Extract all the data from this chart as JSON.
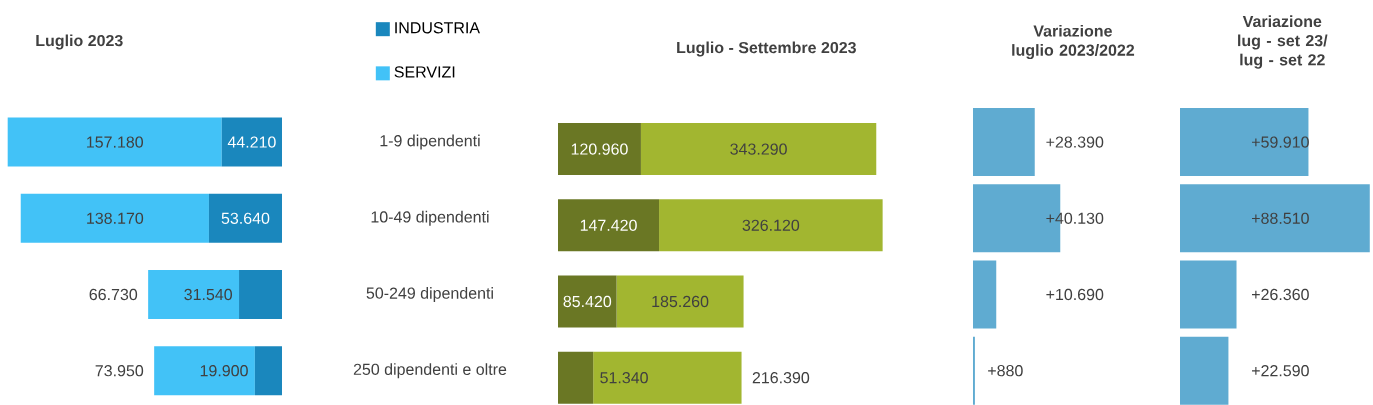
{
  "chart_data": [
    {
      "type": "bar",
      "orientation": "horizontal",
      "stacked": true,
      "title": "Luglio 2023",
      "categories": [
        "1-9 dipendenti",
        "10-49 dipendenti",
        "50-249 dipendenti",
        "250 dipendenti e oltre"
      ],
      "tick_labels": "y",
      "legend": "top",
      "series": [
        {
          "name": "INDUSTRIA",
          "color": "#1a87bd",
          "values": [
            44210,
            53640,
            31540,
            19900
          ],
          "value_labels": [
            "44.210",
            "53.640",
            "31.540",
            "19.900"
          ]
        },
        {
          "name": "SERVIZI",
          "color": "#42c2f7",
          "values": [
            157180,
            138170,
            66730,
            73950
          ],
          "value_labels": [
            "157.180",
            "138.170",
            "66.730",
            "73.950"
          ]
        }
      ]
    },
    {
      "type": "bar",
      "orientation": "horizontal",
      "stacked": true,
      "title": "Luglio - Settembre 2023",
      "categories": [
        null,
        null,
        null,
        null
      ],
      "tick_labels": false,
      "series": [
        {
          "color": "#6a7724",
          "values": [
            120960,
            147420,
            85420,
            51340
          ],
          "value_labels": [
            "120.960",
            "147.420",
            "85.420",
            "51.340"
          ]
        },
        {
          "color": "#a2b630",
          "values": [
            343290,
            326120,
            185260,
            216390
          ],
          "value_labels": [
            "343.290",
            "326.120",
            "185.260",
            "216.390"
          ]
        }
      ]
    },
    {
      "type": "bar",
      "orientation": "horizontal",
      "title": "Variazione luglio 2023/2022",
      "categories": [
        null,
        null,
        null,
        null
      ],
      "tick_labels": false,
      "series": [
        {
          "color": "#5fabd1",
          "values": [
            28390,
            40130,
            10690,
            880
          ],
          "value_labels": [
            "+28.390",
            "+40.130",
            "+10.690",
            "+880"
          ]
        }
      ]
    },
    {
      "type": "bar",
      "orientation": "horizontal",
      "title": "Variazione lug - set 23/ lug - set 22",
      "categories": [
        null,
        null,
        null,
        null
      ],
      "tick_labels": false,
      "series": [
        {
          "color": "#5fabd1",
          "values": [
            59910,
            88510,
            26360,
            22590
          ],
          "value_labels": [
            "+59.910",
            "+88.510",
            "+26.360",
            "+22.590"
          ]
        }
      ]
    }
  ]
}
